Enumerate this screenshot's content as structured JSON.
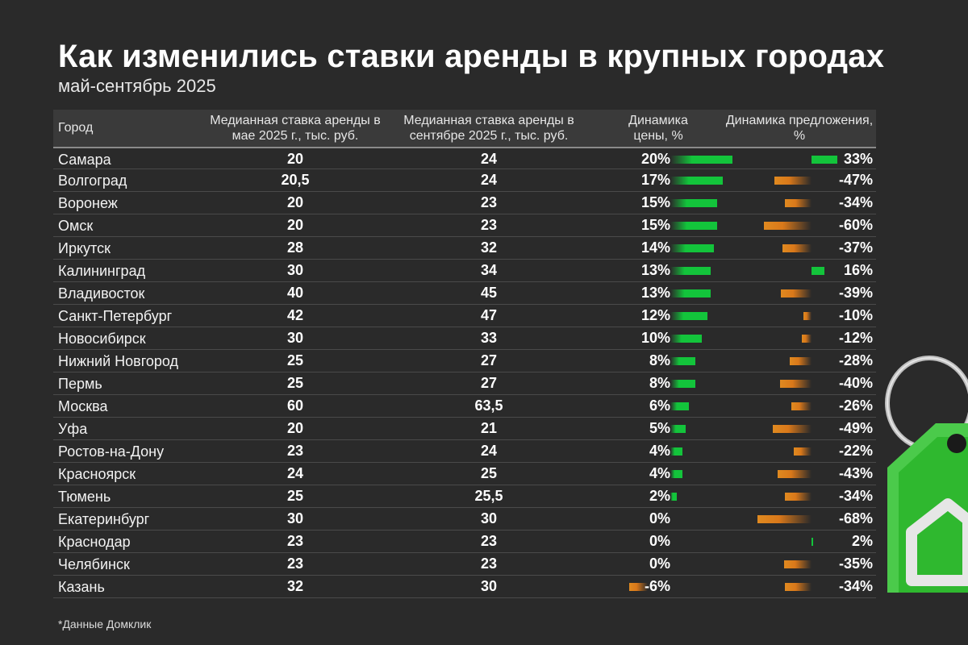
{
  "title": "Как изменились ставки аренды в крупных городах",
  "subtitle": "май-сентябрь 2025",
  "footnote": "*Данные Домклик",
  "headers": {
    "city": "Город",
    "may": "Медианная ставка аренды в мае 2025 г., тыс. руб.",
    "sep": "Медианная ставка аренды в сентябре 2025 г., тыс. руб.",
    "price": "Динамика цены, %",
    "supply": "Динамика предложения, %"
  },
  "colors": {
    "positive": "#13c43b",
    "negative": "#e08a20",
    "background": "#2a2a2a"
  },
  "chart_data": {
    "type": "table",
    "columns": [
      "Город",
      "Медианная ставка аренды в мае 2025 г., тыс. руб.",
      "Медианная ставка аренды в сентябре 2025 г., тыс. руб.",
      "Динамика цены, %",
      "Динамика предложения, %"
    ],
    "rows": [
      {
        "city": "Самара",
        "may": "20",
        "sep": "24",
        "price": 20,
        "price_label": "20%",
        "supply": 33,
        "supply_label": "33%"
      },
      {
        "city": "Волгоград",
        "may": "20,5",
        "sep": "24",
        "price": 17,
        "price_label": "17%",
        "supply": -47,
        "supply_label": "-47%"
      },
      {
        "city": "Воронеж",
        "may": "20",
        "sep": "23",
        "price": 15,
        "price_label": "15%",
        "supply": -34,
        "supply_label": "-34%"
      },
      {
        "city": "Омск",
        "may": "20",
        "sep": "23",
        "price": 15,
        "price_label": "15%",
        "supply": -60,
        "supply_label": "-60%"
      },
      {
        "city": "Иркутск",
        "may": "28",
        "sep": "32",
        "price": 14,
        "price_label": "14%",
        "supply": -37,
        "supply_label": "-37%"
      },
      {
        "city": "Калининград",
        "may": "30",
        "sep": "34",
        "price": 13,
        "price_label": "13%",
        "supply": 16,
        "supply_label": "16%"
      },
      {
        "city": "Владивосток",
        "may": "40",
        "sep": "45",
        "price": 13,
        "price_label": "13%",
        "supply": -39,
        "supply_label": "-39%"
      },
      {
        "city": "Санкт-Петербург",
        "may": "42",
        "sep": "47",
        "price": 12,
        "price_label": "12%",
        "supply": -10,
        "supply_label": "-10%"
      },
      {
        "city": "Новосибирск",
        "may": "30",
        "sep": "33",
        "price": 10,
        "price_label": "10%",
        "supply": -12,
        "supply_label": "-12%"
      },
      {
        "city": "Нижний Новгород",
        "may": "25",
        "sep": "27",
        "price": 8,
        "price_label": "8%",
        "supply": -28,
        "supply_label": "-28%"
      },
      {
        "city": "Пермь",
        "may": "25",
        "sep": "27",
        "price": 8,
        "price_label": "8%",
        "supply": -40,
        "supply_label": "-40%"
      },
      {
        "city": "Москва",
        "may": "60",
        "sep": "63,5",
        "price": 6,
        "price_label": "6%",
        "supply": -26,
        "supply_label": "-26%"
      },
      {
        "city": "Уфа",
        "may": "20",
        "sep": "21",
        "price": 5,
        "price_label": "5%",
        "supply": -49,
        "supply_label": "-49%"
      },
      {
        "city": "Ростов-на-Дону",
        "may": "23",
        "sep": "24",
        "price": 4,
        "price_label": "4%",
        "supply": -22,
        "supply_label": "-22%"
      },
      {
        "city": "Красноярск",
        "may": "24",
        "sep": "25",
        "price": 4,
        "price_label": "4%",
        "supply": -43,
        "supply_label": "-43%"
      },
      {
        "city": "Тюмень",
        "may": "25",
        "sep": "25,5",
        "price": 2,
        "price_label": "2%",
        "supply": -34,
        "supply_label": "-34%"
      },
      {
        "city": "Екатеринбург",
        "may": "30",
        "sep": "30",
        "price": 0,
        "price_label": "0%",
        "supply": -68,
        "supply_label": "-68%"
      },
      {
        "city": "Краснодар",
        "may": "23",
        "sep": "23",
        "price": 0,
        "price_label": "0%",
        "supply": 2,
        "supply_label": "2%"
      },
      {
        "city": "Челябинск",
        "may": "23",
        "sep": "23",
        "price": 0,
        "price_label": "0%",
        "supply": -35,
        "supply_label": "-35%"
      },
      {
        "city": "Казань",
        "may": "32",
        "sep": "30",
        "price": -6,
        "price_label": "-6%",
        "supply": -34,
        "supply_label": "-34%"
      }
    ]
  }
}
